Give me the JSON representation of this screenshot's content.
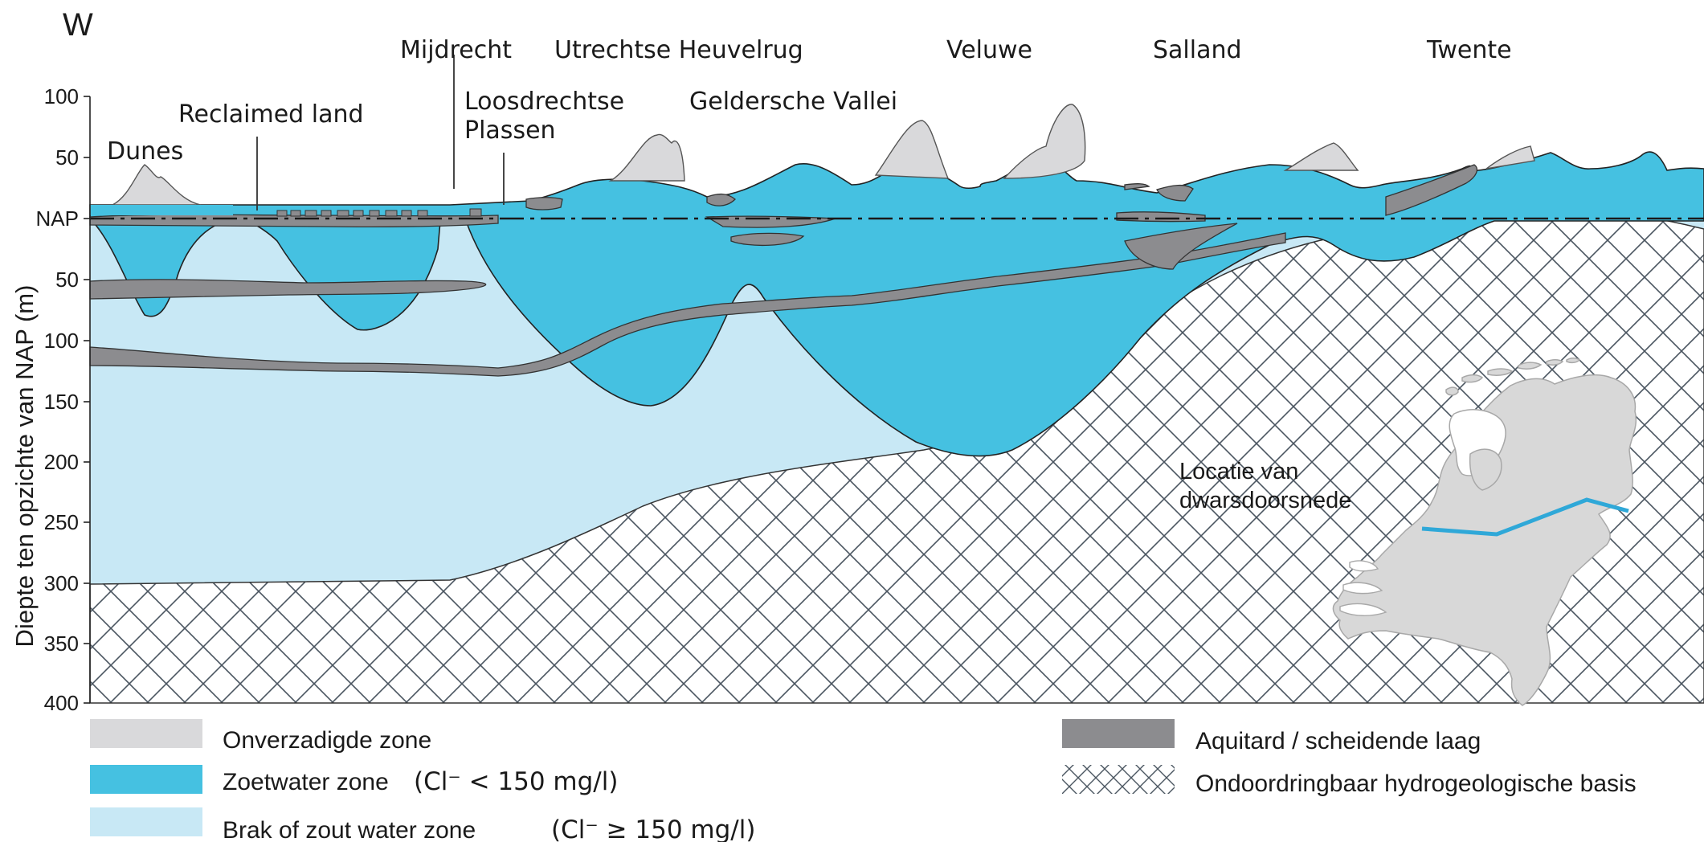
{
  "direction_label": "W",
  "places": {
    "dunes": "Dunes",
    "reclaimed": "Reclaimed land",
    "mijdrecht": "Mijdrecht",
    "loosdrechtse_1": "Loosdrechtse",
    "loosdrechtse_2": "Plassen",
    "utrechtse": "Utrechtse Heuvelrug",
    "geldersche": "Geldersche Vallei",
    "veluwe": "Veluwe",
    "salland": "Salland",
    "twente": "Twente"
  },
  "y_axis": {
    "label": "Diepte ten opzichte van NAP (m)",
    "ticks": [
      "100",
      "50",
      "NAP",
      "50",
      "100",
      "150",
      "200",
      "250",
      "300",
      "350",
      "400"
    ]
  },
  "inset": {
    "label_line1": "Locatie van",
    "label_line2": "dwarsdoorsnede"
  },
  "legend": {
    "unsaturated": "Onverzadigde zone",
    "fresh": "Zoetwater zone",
    "fresh_note": "(Cl⁻ < 150 mg/l)",
    "brackish": "Brak of zout water zone",
    "brackish_note": "(Cl⁻ ≥ 150 mg/l)",
    "aquitard": "Aquitard / scheidende laag",
    "base": "Ondoordringbaar hydrogeologische basis"
  },
  "colors": {
    "unsaturated": "#d9d9db",
    "fresh": "#45c1e1",
    "brackish": "#c8e8f5",
    "aquitard": "#8c8c8f",
    "hatch": "#4a5560",
    "map": "#d8d8d8",
    "section_line": "#2fa8d8"
  }
}
